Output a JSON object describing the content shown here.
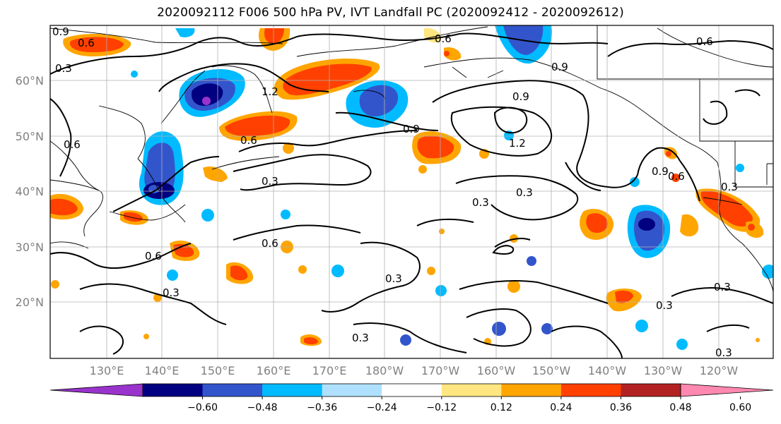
{
  "title": "2020092112 F006 500 hPa PV, IVT Landfall PC (2020092412 - 2020092612)",
  "map": {
    "lat_labels": [
      "60°N",
      "50°N",
      "40°N",
      "30°N",
      "20°N"
    ],
    "lon_labels": [
      "130°E",
      "140°E",
      "150°E",
      "160°E",
      "170°E",
      "180°W",
      "170°W",
      "160°W",
      "150°W",
      "140°W",
      "130°W",
      "120°W"
    ],
    "contour_labels": [
      "0.6",
      "0.3",
      "0.9",
      "0.6",
      "1.2",
      "0.6",
      "0.9",
      "0.6",
      "0.3",
      "0.3",
      "0.3",
      "0.6",
      "0.6",
      "0.3",
      "0.3",
      "0.9",
      "0.6",
      "0.3",
      "0.9",
      "1.2",
      "0.9",
      "0.6",
      "0.3",
      "0.3",
      "0.3",
      "0.3"
    ]
  },
  "colorbar": {
    "ticks": [
      "−0.60",
      "−0.48",
      "−0.36",
      "−0.24",
      "−0.12",
      "0.12",
      "0.24",
      "0.36",
      "0.48",
      "0.60"
    ],
    "colors": [
      "#9933cc",
      "#000080",
      "#3355cc",
      "#00bbff",
      "#b0e0ff",
      "#ffffff",
      "#ffe680",
      "#ffa500",
      "#ff4000",
      "#b22222",
      "#ff88b0"
    ]
  }
}
